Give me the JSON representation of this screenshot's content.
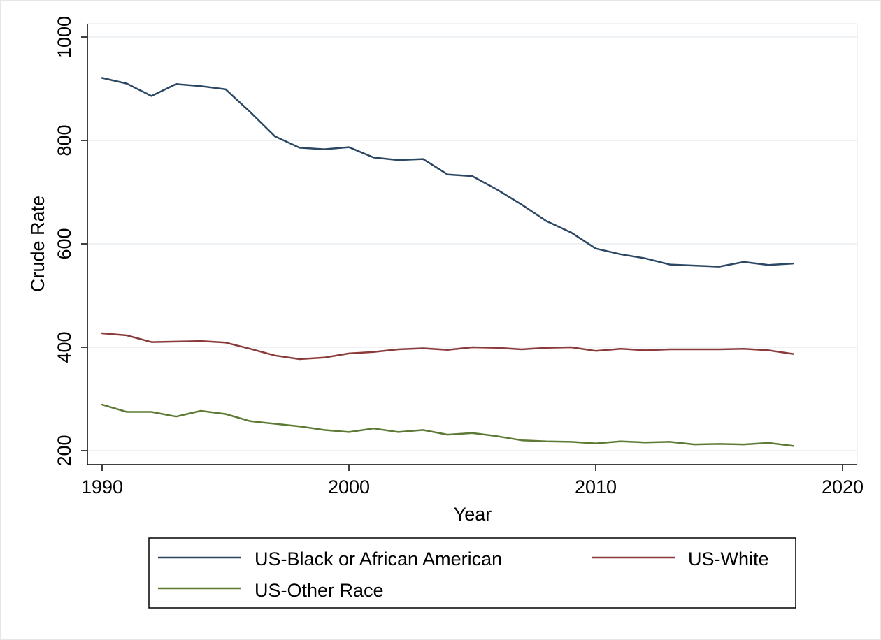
{
  "chart_data": {
    "type": "line",
    "xlabel": "Year",
    "ylabel": "Crude Rate",
    "xlim": [
      1990,
      2020
    ],
    "ylim": [
      200,
      1000
    ],
    "xticks": [
      1990,
      2000,
      2010,
      2020
    ],
    "yticks": [
      200,
      400,
      600,
      800,
      1000
    ],
    "grid": true,
    "legend_position": "bottom",
    "x": [
      1990,
      1991,
      1992,
      1993,
      1994,
      1995,
      1996,
      1997,
      1998,
      1999,
      2000,
      2001,
      2002,
      2003,
      2004,
      2005,
      2006,
      2007,
      2008,
      2009,
      2010,
      2011,
      2012,
      2013,
      2014,
      2015,
      2016,
      2017,
      2018
    ],
    "series": [
      {
        "name": "US-Black or African American",
        "color": "#2b4763",
        "values": [
          921,
          910,
          886,
          909,
          905,
          899,
          855,
          808,
          786,
          783,
          787,
          767,
          762,
          764,
          734,
          731,
          705,
          676,
          644,
          622,
          591,
          580,
          572,
          560,
          558,
          556,
          565,
          559,
          562
        ]
      },
      {
        "name": "US-White",
        "color": "#8a3a3a",
        "values": [
          427,
          423,
          410,
          411,
          412,
          409,
          397,
          384,
          377,
          380,
          388,
          391,
          396,
          398,
          395,
          400,
          399,
          396,
          399,
          400,
          393,
          397,
          394,
          396,
          396,
          396,
          397,
          394,
          387
        ]
      },
      {
        "name": "US-Other Race",
        "color": "#5d7a34",
        "values": [
          289,
          275,
          275,
          266,
          277,
          271,
          257,
          252,
          247,
          240,
          236,
          243,
          236,
          240,
          231,
          234,
          228,
          220,
          218,
          217,
          214,
          218,
          216,
          217,
          212,
          213,
          212,
          215,
          209
        ]
      }
    ]
  }
}
